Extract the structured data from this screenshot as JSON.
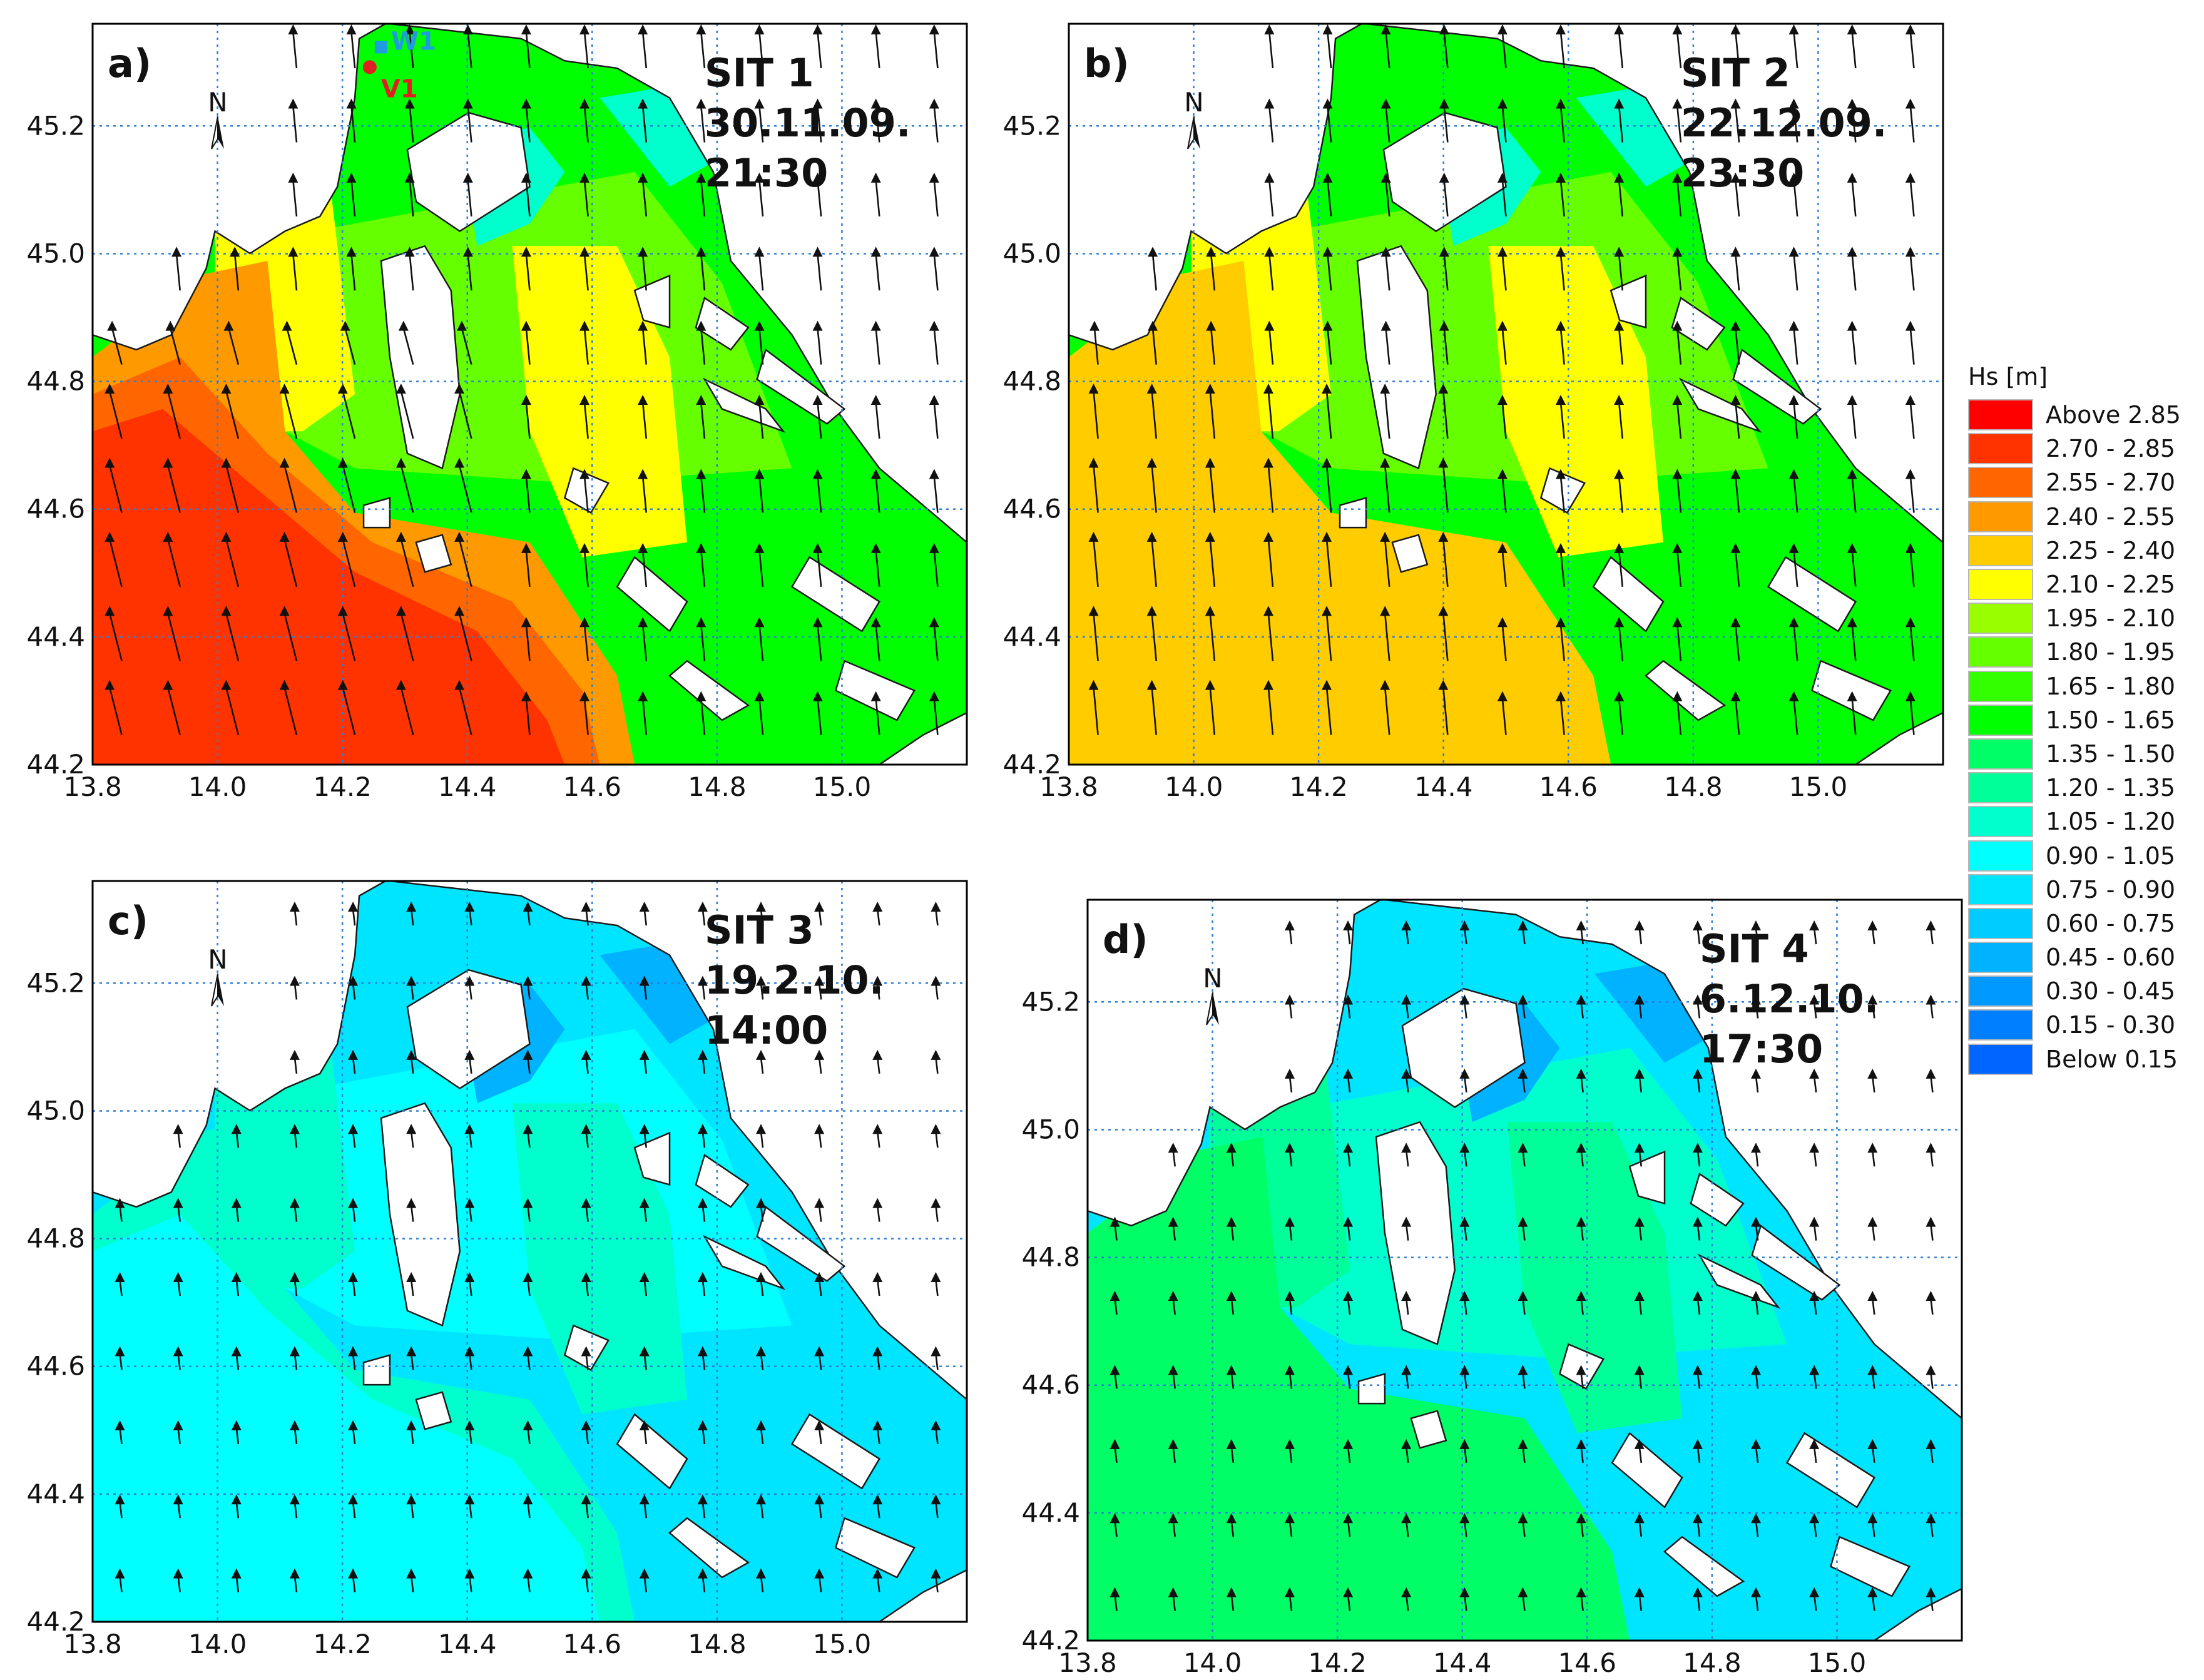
{
  "panels": [
    {
      "letter": "a)",
      "sit": "SIT 1",
      "date": "30.11.09.",
      "time": "21:30",
      "scheme": "sit1"
    },
    {
      "letter": "b)",
      "sit": "SIT 2",
      "date": "22.12.09.",
      "time": "23:30",
      "scheme": "sit2"
    },
    {
      "letter": "c)",
      "sit": "SIT 3",
      "date": "19.2.10.",
      "time": "14:00",
      "scheme": "sit3"
    },
    {
      "letter": "d)",
      "sit": "SIT 4",
      "date": "6.12.10.",
      "time": "17:30",
      "scheme": "sit4"
    }
  ],
  "north_label": "N",
  "x_ticks": [
    "13.8",
    "14.0",
    "14.2",
    "14.4",
    "14.6",
    "14.8",
    "15.0"
  ],
  "y_ticks": [
    "45.2",
    "45.0",
    "44.8",
    "44.6",
    "44.4",
    "44.2"
  ],
  "markers": {
    "w1": {
      "label": "W1",
      "color": "#1f9be0"
    },
    "v1": {
      "label": "V1",
      "color": "#e02020"
    }
  },
  "legend": {
    "title": "Hs [m]",
    "items": [
      {
        "label": "Above 2.85",
        "color": "#ff0000"
      },
      {
        "label": "2.70 - 2.85",
        "color": "#ff3300"
      },
      {
        "label": "2.55 - 2.70",
        "color": "#ff6600"
      },
      {
        "label": "2.40 - 2.55",
        "color": "#ff9900"
      },
      {
        "label": "2.25 - 2.40",
        "color": "#ffcc00"
      },
      {
        "label": "2.10 - 2.25",
        "color": "#ffff00"
      },
      {
        "label": "1.95 - 2.10",
        "color": "#99ff00"
      },
      {
        "label": "1.80 - 1.95",
        "color": "#66ff00"
      },
      {
        "label": "1.65 - 1.80",
        "color": "#33ff00"
      },
      {
        "label": "1.50 - 1.65",
        "color": "#00ff00"
      },
      {
        "label": "1.35 - 1.50",
        "color": "#00ff66"
      },
      {
        "label": "1.20 - 1.35",
        "color": "#00ff99"
      },
      {
        "label": "1.05 - 1.20",
        "color": "#00ffcc"
      },
      {
        "label": "0.90 - 1.05",
        "color": "#00ffff"
      },
      {
        "label": "0.75 - 0.90",
        "color": "#00e5ff"
      },
      {
        "label": "0.60 - 0.75",
        "color": "#00ccff"
      },
      {
        "label": "0.45 - 0.60",
        "color": "#00b2ff"
      },
      {
        "label": "0.30 - 0.45",
        "color": "#0099ff"
      },
      {
        "label": "0.15 - 0.30",
        "color": "#0080ff"
      },
      {
        "label": "Below 0.15",
        "color": "#0066ff"
      }
    ]
  },
  "colors": {
    "sit1": {
      "base": "#00ff00",
      "mid": "#66ff00",
      "yellow": "#ffff00",
      "orange": "#ff9900",
      "o2": "#ff6600",
      "red": "#ff3300",
      "low": "#00ffcc"
    },
    "sit2": {
      "base": "#00ff00",
      "mid": "#66ff00",
      "yellow": "#ffff00",
      "orange": "#ffcc00",
      "o2": "#ffcc00",
      "red": "#ffcc00",
      "low": "#00ffcc"
    },
    "sit3": {
      "base": "#00e5ff",
      "mid": "#00ffff",
      "yellow": "#00ffcc",
      "orange": "#00ffcc",
      "o2": "#00ffff",
      "red": "#00ffff",
      "low": "#00b2ff"
    },
    "sit4": {
      "base": "#00e5ff",
      "mid": "#00ffcc",
      "yellow": "#00ff99",
      "orange": "#00ff66",
      "o2": "#00ff66",
      "red": "#00ff66",
      "low": "#00b2ff"
    }
  }
}
